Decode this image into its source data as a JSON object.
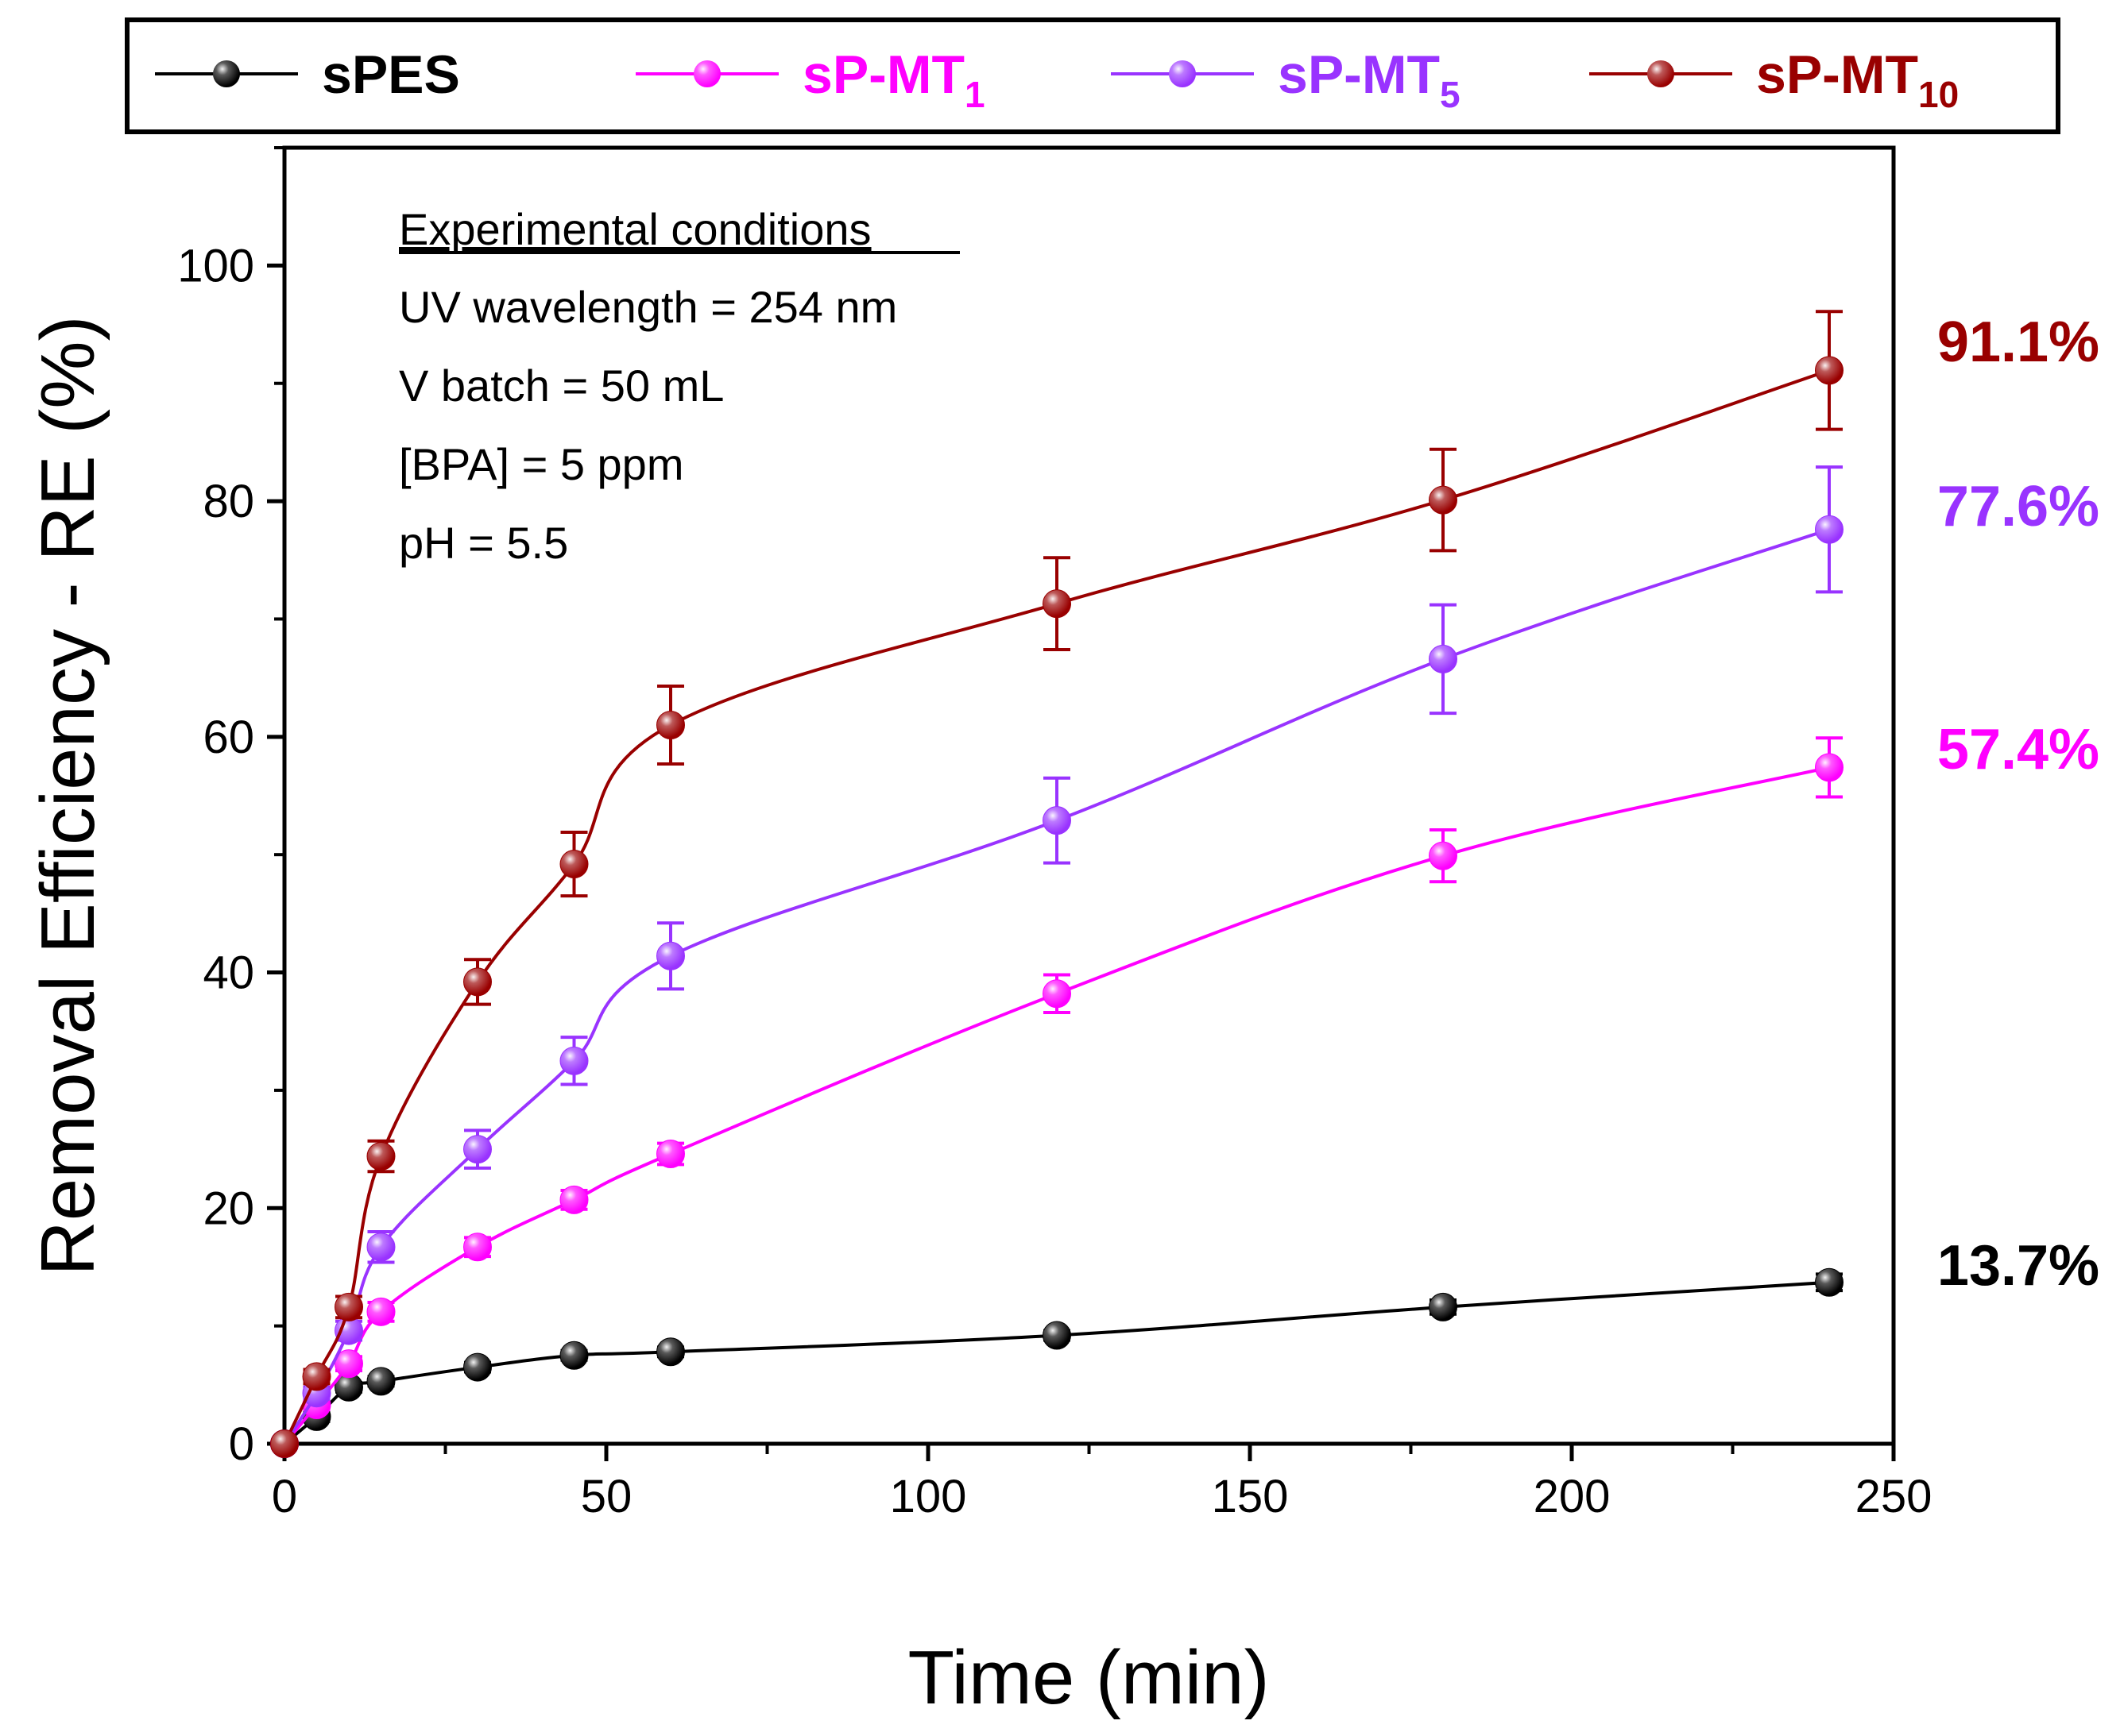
{
  "chart_data": {
    "type": "line",
    "title": "",
    "xlabel": "Time (min)",
    "ylabel": "Removal Efficiency - RE (%)",
    "xlim": [
      0,
      250
    ],
    "ylim": [
      0,
      110
    ],
    "xticks": [
      0,
      50,
      100,
      150,
      200,
      250
    ],
    "yticks": [
      0,
      20,
      40,
      60,
      80,
      100
    ],
    "grid": false,
    "legend_position": "top (boxed, above plot)",
    "x": [
      0,
      5,
      10,
      15,
      30,
      45,
      60,
      120,
      180,
      240
    ],
    "series": [
      {
        "name": "sPES",
        "legend_main": "sPES",
        "legend_sub": "",
        "color": "#000000",
        "values": [
          0,
          2.3,
          4.8,
          5.3,
          6.5,
          7.5,
          7.8,
          9.2,
          11.6,
          13.7
        ],
        "errors": [
          0,
          0.4,
          0.4,
          0.4,
          0.4,
          0.4,
          0.4,
          0.4,
          0.6,
          0.7
        ],
        "end_label": "13.7%"
      },
      {
        "name": "sP-MT1",
        "legend_main": "sP-MT",
        "legend_sub": "1",
        "color": "#ff00ff",
        "values": [
          0,
          3.3,
          6.8,
          11.2,
          16.7,
          20.7,
          24.6,
          38.2,
          49.9,
          57.4
        ],
        "errors": [
          0,
          0.4,
          0.6,
          0.8,
          0.8,
          0.8,
          0.9,
          1.6,
          2.2,
          2.5
        ],
        "end_label": "57.4%"
      },
      {
        "name": "sP-MT5",
        "legend_main": "sP-MT",
        "legend_sub": "5",
        "color": "#9933ff",
        "values": [
          0,
          4.3,
          9.6,
          16.7,
          25.0,
          32.5,
          41.4,
          52.9,
          66.6,
          77.6
        ],
        "errors": [
          0,
          0.5,
          0.8,
          1.3,
          1.6,
          2.0,
          2.8,
          3.6,
          4.6,
          5.3
        ],
        "end_label": "77.6%"
      },
      {
        "name": "sP-MT10",
        "legend_main": "sP-MT",
        "legend_sub": "10",
        "color": "#990000",
        "values": [
          0,
          5.7,
          11.6,
          24.4,
          39.2,
          49.2,
          61.0,
          71.3,
          80.1,
          91.1
        ],
        "errors": [
          0,
          0.6,
          0.9,
          1.3,
          1.9,
          2.7,
          3.3,
          3.9,
          4.3,
          5.0
        ],
        "end_label": "91.1%"
      }
    ],
    "annotation": {
      "heading": "Experimental conditions",
      "lines": [
        "UV wavelength = 254 nm",
        "V batch = 50 mL",
        "[BPA] = 5 ppm",
        "pH = 5.5"
      ]
    }
  }
}
